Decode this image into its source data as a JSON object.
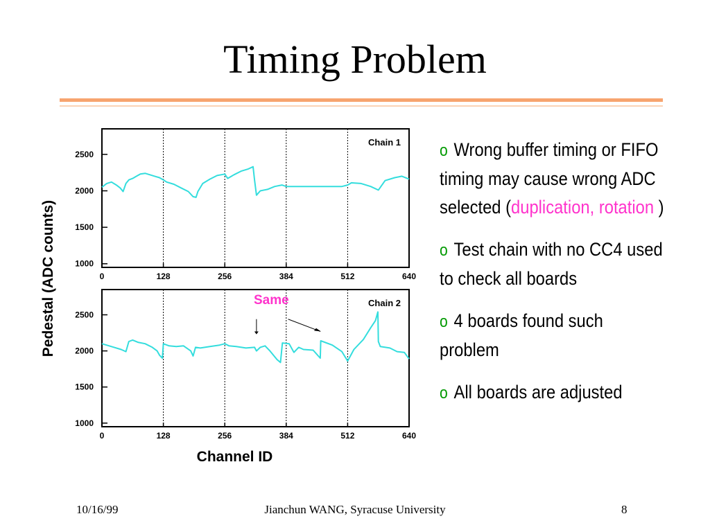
{
  "slide": {
    "title": "Timing Problem",
    "accent_color": "#f7a46f",
    "bullet_marker": "o",
    "bullets": [
      {
        "pre": "Wrong buffer timing or FIFO timing may cause wrong ADC selected (",
        "highlight": "duplication, rotation",
        "post": " )"
      },
      {
        "pre": "Test chain with no CC4 used to check all boards",
        "highlight": "",
        "post": ""
      },
      {
        "pre": "4 boards found such problem",
        "highlight": "",
        "post": ""
      },
      {
        "pre": "All boards are adjusted",
        "highlight": "",
        "post": ""
      }
    ],
    "highlight_color": "#ff33cc",
    "marker_color": "#009900"
  },
  "footer": {
    "date": "10/16/99",
    "author": "Jianchun WANG, Syracuse University",
    "page": "8"
  },
  "chart_data": [
    {
      "type": "line",
      "label": "Chain 1",
      "ylabel": "Pedestal (ADC counts)",
      "xlabel": "",
      "xlim": [
        0,
        640
      ],
      "ylim": [
        950,
        2850
      ],
      "xticks": [
        0,
        128,
        256,
        384,
        512,
        640
      ],
      "yticks": [
        1000,
        1500,
        2000,
        2500
      ],
      "vlines": [
        128,
        256,
        384,
        512
      ],
      "line_color": "#33dddd",
      "series": [
        {
          "x": [
            0,
            10,
            20,
            30,
            38,
            44,
            50,
            56,
            64,
            72,
            80,
            90,
            100,
            110,
            120,
            128,
            135,
            150,
            165,
            180,
            190,
            196,
            200,
            210,
            225,
            240,
            256,
            262,
            275,
            290,
            305,
            315,
            318,
            322,
            330,
            345,
            360,
            375,
            384,
            395,
            420,
            460,
            500,
            512,
            520,
            540,
            560,
            576,
            590,
            610,
            625,
            640
          ],
          "y": [
            2050,
            2100,
            2120,
            2080,
            2040,
            1990,
            2100,
            2150,
            2170,
            2200,
            2230,
            2240,
            2220,
            2200,
            2180,
            2150,
            2120,
            2090,
            2040,
            1990,
            1920,
            1910,
            1990,
            2100,
            2160,
            2210,
            2230,
            2170,
            2220,
            2270,
            2300,
            2330,
            2150,
            1940,
            2000,
            2020,
            2060,
            2080,
            2060,
            2060,
            2060,
            2060,
            2060,
            2080,
            2110,
            2100,
            2060,
            2010,
            2140,
            2180,
            2200,
            2160
          ]
        }
      ]
    },
    {
      "type": "line",
      "label": "Chain 2",
      "annotation": "Same",
      "annotation_color": "#ff33cc",
      "ylabel": "Pedestal (ADC counts)",
      "xlabel": "Channel ID",
      "xlim": [
        0,
        640
      ],
      "ylim": [
        950,
        2850
      ],
      "xticks": [
        0,
        128,
        256,
        384,
        512,
        640
      ],
      "yticks": [
        1000,
        1500,
        2000,
        2500
      ],
      "vlines": [
        128,
        256,
        384,
        512
      ],
      "line_color": "#33dddd",
      "series": [
        {
          "x": [
            0,
            20,
            40,
            50,
            56,
            64,
            75,
            90,
            105,
            115,
            120,
            126,
            128,
            140,
            155,
            170,
            185,
            190,
            195,
            205,
            225,
            245,
            256,
            265,
            280,
            300,
            318,
            322,
            330,
            340,
            350,
            365,
            372,
            376,
            390,
            400,
            410,
            420,
            440,
            455,
            456,
            460,
            480,
            500,
            512,
            525,
            545,
            560,
            570,
            575,
            576,
            580,
            600,
            615,
            630,
            640
          ],
          "y": [
            2100,
            2060,
            2020,
            1990,
            2130,
            2150,
            2120,
            2100,
            2050,
            2000,
            1940,
            1900,
            2100,
            2070,
            2060,
            2070,
            2000,
            1930,
            2050,
            2040,
            2060,
            2080,
            2100,
            2070,
            2060,
            2040,
            2050,
            2000,
            2050,
            2070,
            2000,
            1880,
            1840,
            2110,
            2100,
            1980,
            2050,
            2020,
            2010,
            1900,
            2140,
            2130,
            2080,
            1990,
            1860,
            2020,
            2160,
            2320,
            2420,
            2540,
            2130,
            2060,
            2040,
            1990,
            1980,
            1890
          ]
        }
      ]
    }
  ]
}
